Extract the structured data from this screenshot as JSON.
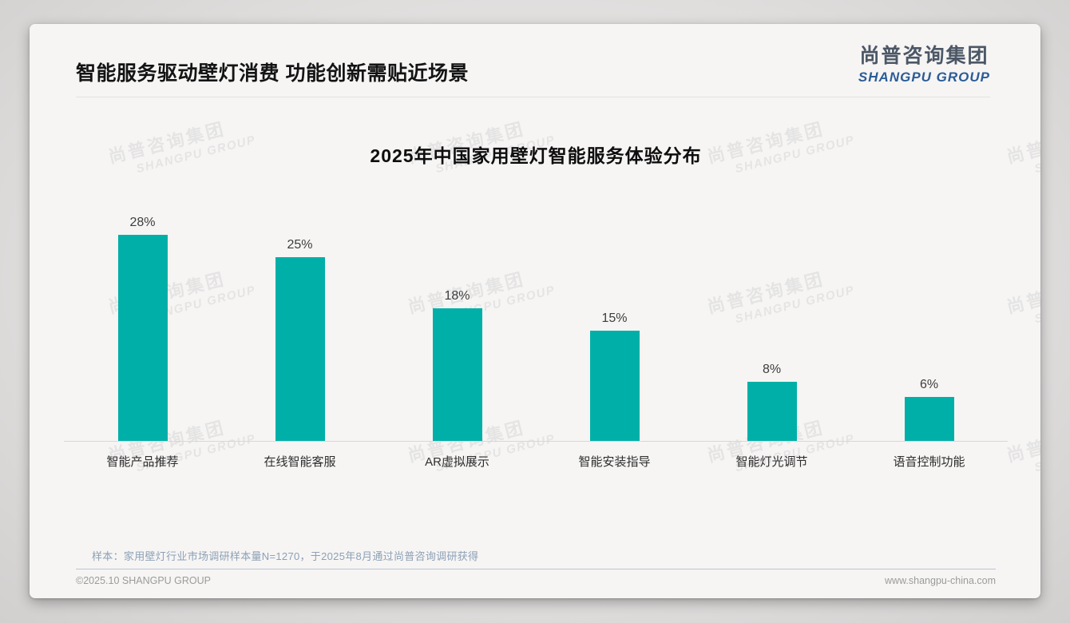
{
  "page": {
    "title": "智能服务驱动壁灯消费 功能创新需贴近场景",
    "logo": {
      "zh": "尚普咨询集团",
      "en": "SHANGPU GROUP"
    },
    "watermark": {
      "zh": "尚普咨询集团",
      "en": "SHANGPU GROUP"
    },
    "note": "样本：家用壁灯行业市场调研样本量N=1270，于2025年8月通过尚普咨询调研获得",
    "footer": {
      "left": "©2025.10 SHANGPU GROUP",
      "right": "www.shangpu-china.com"
    }
  },
  "chart_data": {
    "type": "bar",
    "title": "2025年中国家用壁灯智能服务体验分布",
    "categories": [
      "智能产品推荐",
      "在线智能客服",
      "AR虚拟展示",
      "智能安装指导",
      "智能灯光调节",
      "语音控制功能"
    ],
    "values": [
      28,
      25,
      18,
      15,
      8,
      6
    ],
    "unit": "%",
    "ylim": [
      0,
      30
    ],
    "grid": false,
    "legend": false,
    "bar_color": "#00b0a8",
    "value_label_color": "#3d3d3d",
    "category_label_color": "#2d2d2d"
  }
}
